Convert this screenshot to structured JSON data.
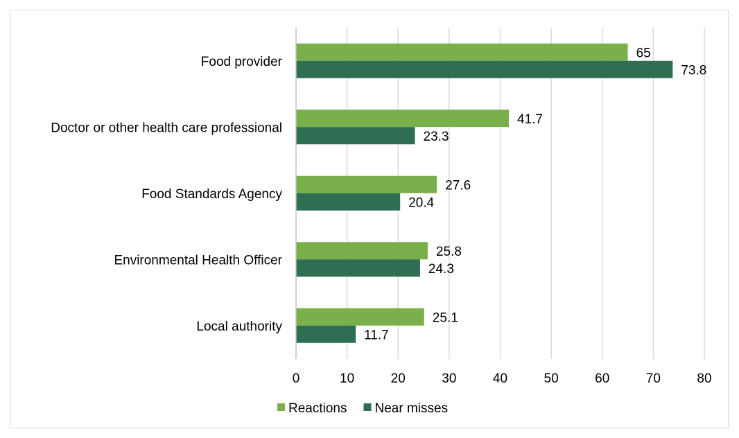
{
  "chart_data": {
    "type": "bar",
    "orientation": "horizontal",
    "categories": [
      "Food provider",
      "Doctor or other health care professional",
      "Food Standards Agency",
      "Environmental Health Officer",
      "Local authority"
    ],
    "series": [
      {
        "name": "Reactions",
        "color": "#7ab04c",
        "values": [
          65,
          41.7,
          27.6,
          25.8,
          25.1
        ]
      },
      {
        "name": "Near misses",
        "color": "#2e6e52",
        "values": [
          73.8,
          23.3,
          20.4,
          24.3,
          11.7
        ]
      }
    ],
    "x_ticks": [
      "0",
      "10",
      "20",
      "30",
      "40",
      "50",
      "60",
      "70",
      "80"
    ],
    "xlim": [
      0,
      80
    ],
    "grid": "vertical",
    "legend_position": "bottom",
    "data_labels": true
  }
}
